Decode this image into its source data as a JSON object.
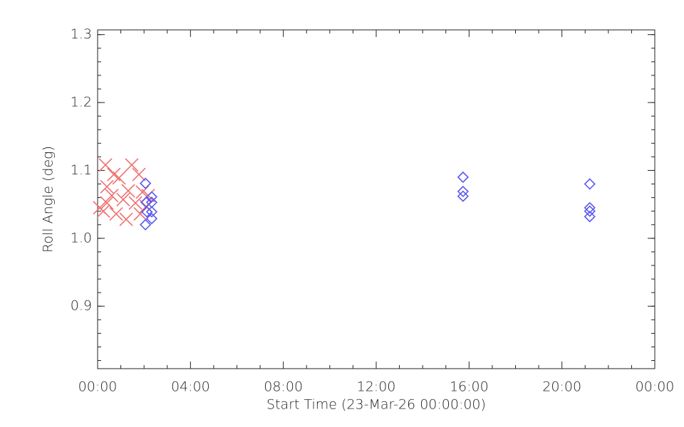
{
  "chart_data": {
    "type": "scatter",
    "x_label": "Start Time (23-Mar-26 00:00:00)",
    "y_label": "Roll Angle (deg)",
    "xlim": [
      0,
      24
    ],
    "xticks": [
      {
        "value": 0,
        "label": "00:00"
      },
      {
        "value": 4,
        "label": "04:00"
      },
      {
        "value": 8,
        "label": "08:00"
      },
      {
        "value": 12,
        "label": "12:00"
      },
      {
        "value": 16,
        "label": "16:00"
      },
      {
        "value": 20,
        "label": "20:00"
      },
      {
        "value": 24,
        "label": "00:00"
      }
    ],
    "ylim": [
      0.808,
      1.307
    ],
    "yticks": [
      0.9,
      {
        "value": 1,
        "label": "1.0"
      },
      1.1,
      1.2,
      1.3
    ],
    "series": [
      {
        "color": "#f07070",
        "marker": "x",
        "x": [
          0.09,
          0.34,
          0.4,
          0.4,
          0.25,
          0.61,
          0.7,
          0.8,
          0.92,
          1.1,
          1.23,
          1.32,
          1.47,
          1.63,
          1.78,
          1.84,
          1.93,
          2.09,
          2.18
        ],
        "values": [
          1.045,
          1.108,
          1.076,
          1.052,
          1.04,
          1.063,
          1.094,
          1.036,
          1.089,
          1.057,
          1.028,
          1.07,
          1.108,
          1.052,
          1.094,
          1.036,
          1.068,
          1.047,
          1.063
        ]
      },
      {
        "color": "#5a5af0",
        "marker": "diamond",
        "x": [
          2.06,
          2.06,
          2.09,
          2.12,
          2.33,
          2.33,
          2.33,
          2.33,
          15.74,
          15.74,
          15.74,
          21.2,
          21.2,
          21.2,
          21.2
        ],
        "values": [
          1.081,
          1.02,
          1.053,
          1.039,
          1.061,
          1.053,
          1.039,
          1.029,
          1.09,
          1.069,
          1.062,
          1.08,
          1.045,
          1.04,
          1.032
        ]
      }
    ]
  }
}
